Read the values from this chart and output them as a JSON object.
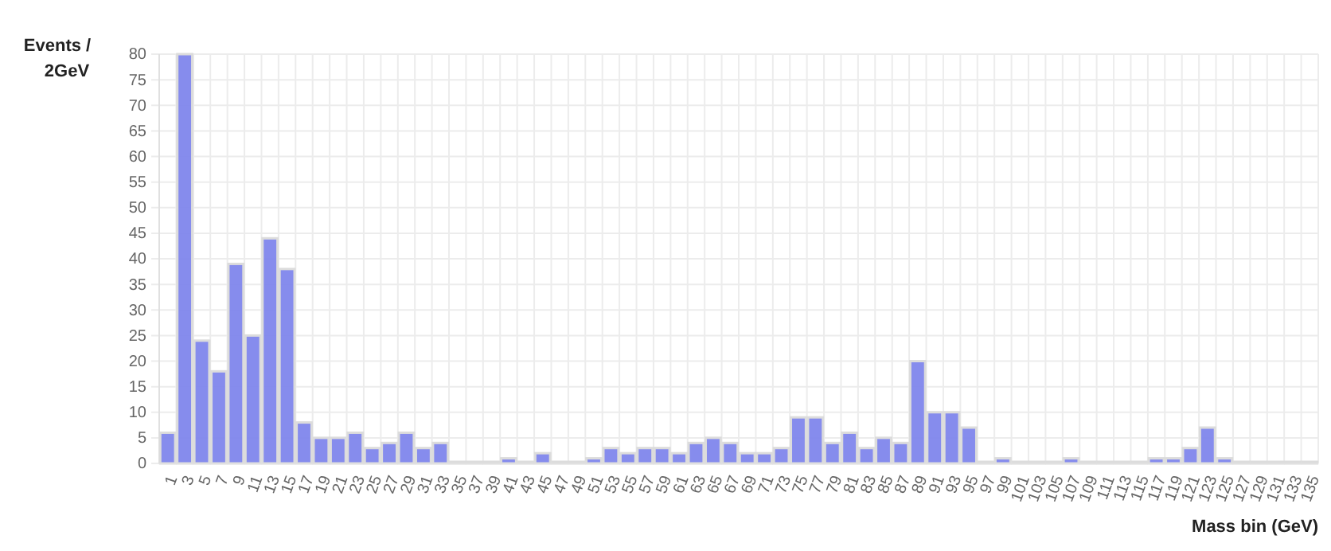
{
  "chart_data": {
    "type": "bar",
    "xlabel": "Mass bin (GeV)",
    "ylabel": "Events / 2GeV",
    "categories": [
      "1",
      "3",
      "5",
      "7",
      "9",
      "11",
      "13",
      "15",
      "17",
      "19",
      "21",
      "23",
      "25",
      "27",
      "29",
      "31",
      "33",
      "35",
      "37",
      "39",
      "41",
      "43",
      "45",
      "47",
      "49",
      "51",
      "53",
      "55",
      "57",
      "59",
      "61",
      "63",
      "65",
      "67",
      "69",
      "71",
      "73",
      "75",
      "77",
      "79",
      "81",
      "83",
      "85",
      "87",
      "89",
      "91",
      "93",
      "95",
      "97",
      "99",
      "101",
      "103",
      "105",
      "107",
      "109",
      "111",
      "113",
      "115",
      "117",
      "119",
      "121",
      "123",
      "125",
      "127",
      "129",
      "131",
      "133",
      "135"
    ],
    "values": [
      6,
      80,
      24,
      18,
      39,
      25,
      44,
      38,
      8,
      5,
      5,
      6,
      3,
      4,
      6,
      3,
      4,
      0,
      0,
      0,
      1,
      0,
      2,
      0,
      0,
      1,
      3,
      2,
      3,
      3,
      2,
      4,
      5,
      4,
      2,
      2,
      3,
      9,
      9,
      4,
      6,
      3,
      5,
      4,
      20,
      10,
      10,
      7,
      0,
      1,
      0,
      0,
      0,
      1,
      0,
      0,
      0,
      0,
      1,
      1,
      3,
      7,
      1,
      0,
      0,
      0,
      0,
      0
    ],
    "color": "#7f86ec",
    "ylim": [
      0,
      80
    ],
    "yticks": [
      0,
      5,
      10,
      15,
      20,
      25,
      30,
      35,
      40,
      45,
      50,
      55,
      60,
      65,
      70,
      75,
      80
    ],
    "grid": true
  }
}
